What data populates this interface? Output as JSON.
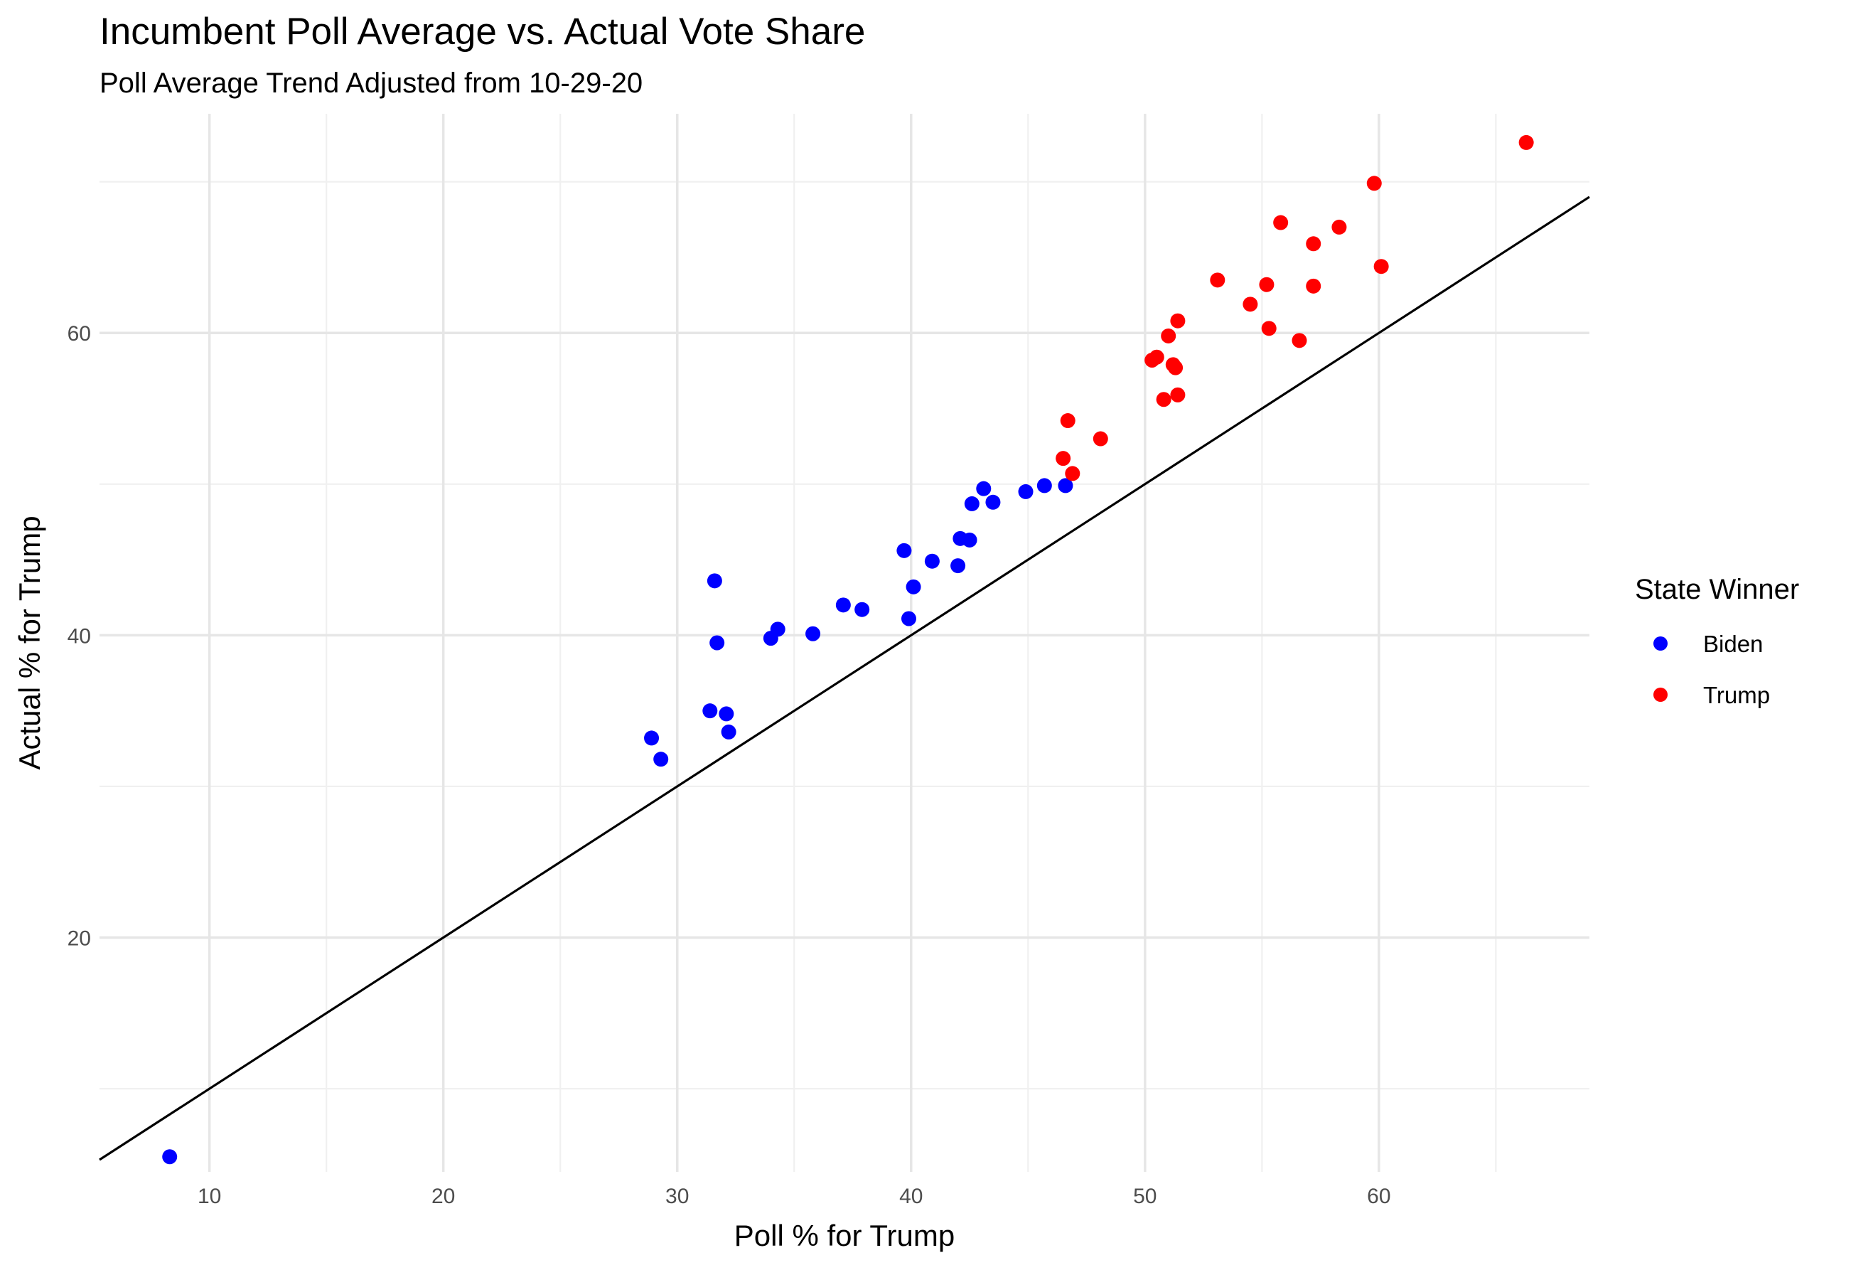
{
  "chart_data": {
    "type": "scatter",
    "title": "Incumbent Poll Average vs. Actual Vote Share",
    "subtitle": "Poll Average Trend Adjusted from 10-29-20",
    "xlabel": "Poll % for Trump",
    "ylabel": "Actual % for Trump",
    "xlim": [
      5.3,
      69
    ],
    "ylim": [
      4.5,
      74.5
    ],
    "x_ticks": [
      10,
      20,
      30,
      40,
      50,
      60
    ],
    "y_ticks": [
      20,
      40,
      60
    ],
    "grid": true,
    "reference_line": {
      "slope": 1,
      "intercept": 0
    },
    "legend": {
      "title": "State Winner",
      "position": "right",
      "entries": [
        {
          "label": "Biden",
          "color": "#0000ff"
        },
        {
          "label": "Trump",
          "color": "#ff0000"
        }
      ]
    },
    "series": [
      {
        "name": "Biden",
        "color": "#0000ff",
        "points": [
          [
            8.3,
            5.5
          ],
          [
            28.9,
            33.2
          ],
          [
            29.3,
            31.8
          ],
          [
            31.4,
            35.0
          ],
          [
            31.6,
            43.6
          ],
          [
            31.7,
            39.5
          ],
          [
            32.1,
            34.8
          ],
          [
            32.2,
            33.6
          ],
          [
            34.0,
            39.8
          ],
          [
            34.3,
            40.4
          ],
          [
            35.8,
            40.1
          ],
          [
            37.1,
            42.0
          ],
          [
            37.9,
            41.7
          ],
          [
            39.7,
            45.6
          ],
          [
            39.9,
            41.1
          ],
          [
            40.1,
            43.2
          ],
          [
            40.9,
            44.9
          ],
          [
            42.0,
            44.6
          ],
          [
            42.1,
            46.4
          ],
          [
            42.5,
            46.3
          ],
          [
            42.6,
            48.7
          ],
          [
            43.1,
            49.7
          ],
          [
            43.5,
            48.8
          ],
          [
            44.9,
            49.5
          ],
          [
            45.7,
            49.9
          ],
          [
            46.6,
            49.9
          ]
        ]
      },
      {
        "name": "Trump",
        "color": "#ff0000",
        "points": [
          [
            46.5,
            51.7
          ],
          [
            46.7,
            54.2
          ],
          [
            46.9,
            50.7
          ],
          [
            48.1,
            53.0
          ],
          [
            50.3,
            58.2
          ],
          [
            50.5,
            58.4
          ],
          [
            50.8,
            55.6
          ],
          [
            51.0,
            59.8
          ],
          [
            51.2,
            57.9
          ],
          [
            51.3,
            57.7
          ],
          [
            51.4,
            60.8
          ],
          [
            51.4,
            55.9
          ],
          [
            53.1,
            63.5
          ],
          [
            54.5,
            61.9
          ],
          [
            55.2,
            63.2
          ],
          [
            55.3,
            60.3
          ],
          [
            55.8,
            67.3
          ],
          [
            56.6,
            59.5
          ],
          [
            57.2,
            65.9
          ],
          [
            57.2,
            63.1
          ],
          [
            58.3,
            67.0
          ],
          [
            59.8,
            69.9
          ],
          [
            60.1,
            64.4
          ],
          [
            66.3,
            72.6
          ]
        ]
      }
    ]
  }
}
